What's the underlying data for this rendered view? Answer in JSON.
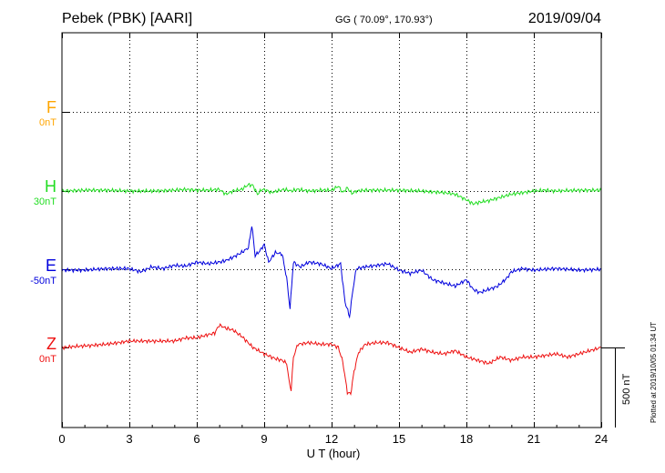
{
  "header": {
    "station": "Pebek (PBK)  [AARI]",
    "coords": "GG ( 70.09°, 170.93°)",
    "date": "2019/09/04"
  },
  "channels": [
    {
      "name": "F",
      "offset": "0nT",
      "color": "#ffa500"
    },
    {
      "name": "H",
      "offset": "30nT",
      "color": "#22dd22"
    },
    {
      "name": "E",
      "offset": "-50nT",
      "color": "#0000dd"
    },
    {
      "name": "Z",
      "offset": "0nT",
      "color": "#ee1111"
    }
  ],
  "scale_label": "500 nT",
  "plotted_note": "Plotted at 2019/10/05 01:34 UT",
  "chart_data": {
    "type": "line",
    "xlabel": "U T (hour)",
    "xlim": [
      0,
      24
    ],
    "xticks": [
      "0",
      "3",
      "6",
      "9",
      "12",
      "15",
      "18",
      "21",
      "24"
    ],
    "grid": true,
    "series": [
      {
        "name": "H",
        "color": "#22dd22",
        "x": [
          0,
          1,
          2,
          3,
          4,
          5,
          5.5,
          6,
          6.5,
          7,
          7.3,
          7.6,
          8,
          8.3,
          8.5,
          8.7,
          8.9,
          9.1,
          9.3,
          9.6,
          9.9,
          10.2,
          10.5,
          11,
          11.5,
          12,
          12.3,
          12.5,
          12.7,
          12.9,
          13.1,
          13.5,
          14,
          15,
          16,
          16.5,
          17,
          17.5,
          18,
          18.3,
          18.6,
          19,
          19.5,
          20,
          20.5,
          21,
          21.5,
          22,
          23,
          24
        ],
        "y": [
          0,
          5,
          5,
          0,
          0,
          5,
          10,
          5,
          5,
          10,
          -20,
          0,
          10,
          40,
          35,
          -20,
          10,
          5,
          -10,
          0,
          10,
          0,
          10,
          0,
          5,
          5,
          30,
          -10,
          20,
          -15,
          0,
          5,
          5,
          5,
          0,
          -5,
          -10,
          -20,
          -55,
          -80,
          -70,
          -60,
          -40,
          -20,
          -10,
          0,
          5,
          0,
          5,
          5
        ]
      },
      {
        "name": "E",
        "color": "#0000dd",
        "x": [
          0,
          1,
          2,
          3,
          3.5,
          4,
          4.5,
          5,
          5.5,
          6,
          6.5,
          7,
          7.3,
          7.6,
          8,
          8.3,
          8.45,
          8.6,
          8.8,
          9,
          9.2,
          9.5,
          9.8,
          10,
          10.15,
          10.3,
          10.6,
          11,
          11.5,
          12,
          12.4,
          12.6,
          12.8,
          12.95,
          13.1,
          13.5,
          14,
          14.5,
          15,
          15.5,
          16,
          16.5,
          17,
          17.5,
          18,
          18.3,
          18.6,
          19,
          19.4,
          19.8,
          20,
          20.5,
          21,
          22,
          23,
          24
        ],
        "y": [
          0,
          0,
          10,
          10,
          -10,
          20,
          10,
          30,
          25,
          50,
          40,
          50,
          60,
          80,
          110,
          140,
          280,
          90,
          120,
          160,
          50,
          110,
          100,
          -50,
          -240,
          50,
          20,
          50,
          40,
          10,
          40,
          -200,
          -290,
          -120,
          10,
          20,
          30,
          40,
          0,
          -20,
          0,
          -60,
          -80,
          -100,
          -60,
          -120,
          -140,
          -120,
          -100,
          -50,
          -10,
          10,
          0,
          10,
          0,
          5
        ]
      },
      {
        "name": "Z",
        "color": "#ee1111",
        "x": [
          0,
          1,
          2,
          3,
          4,
          5,
          5.5,
          6,
          6.5,
          6.8,
          7,
          7.3,
          7.6,
          8,
          8.5,
          9,
          9.5,
          9.8,
          10,
          10.1,
          10.2,
          10.3,
          10.5,
          11,
          11.5,
          12,
          12.3,
          12.5,
          12.7,
          12.85,
          13,
          13.2,
          13.5,
          14,
          14.5,
          15,
          15.5,
          16,
          16.5,
          17,
          17.5,
          18,
          18.5,
          19,
          19.5,
          20,
          20.5,
          21,
          22,
          22.5,
          23,
          24
        ],
        "y": [
          0,
          10,
          20,
          40,
          40,
          40,
          60,
          60,
          80,
          90,
          140,
          120,
          110,
          70,
          0,
          -40,
          -70,
          -80,
          -100,
          -200,
          -270,
          -60,
          20,
          30,
          20,
          20,
          0,
          -90,
          -280,
          -290,
          -150,
          -30,
          20,
          30,
          30,
          0,
          -30,
          -10,
          -30,
          -40,
          -20,
          -60,
          -80,
          -100,
          -60,
          -80,
          -60,
          -60,
          -40,
          -60,
          -40,
          0
        ]
      }
    ]
  }
}
